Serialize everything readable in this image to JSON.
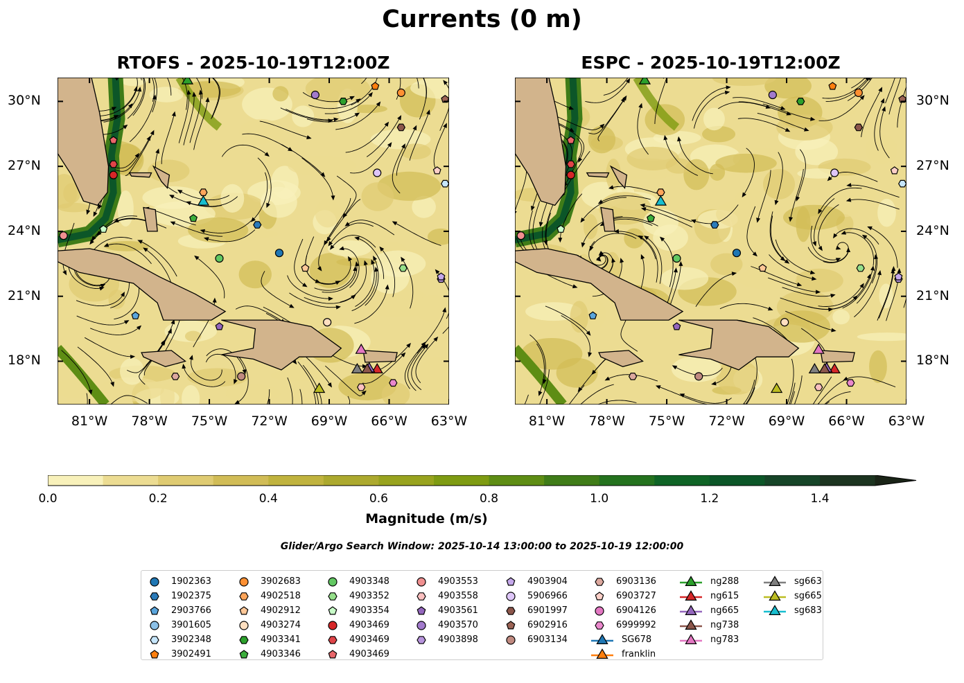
{
  "suptitle": "Currents (0 m)",
  "chart_data": {
    "type": "map",
    "panels": [
      {
        "title": "RTOFS - 2025-10-19T12:00Z"
      },
      {
        "title": "ESPC - 2025-10-19T12:00Z"
      }
    ],
    "lon_range": [
      -82.6,
      -63
    ],
    "lat_range": [
      16,
      31.1
    ],
    "lon_ticks": [
      {
        "v": -81,
        "label": "81°W"
      },
      {
        "v": -78,
        "label": "78°W"
      },
      {
        "v": -75,
        "label": "75°W"
      },
      {
        "v": -72,
        "label": "72°W"
      },
      {
        "v": -69,
        "label": "69°W"
      },
      {
        "v": -66,
        "label": "66°W"
      },
      {
        "v": -63,
        "label": "63°W"
      }
    ],
    "lat_ticks": [
      {
        "v": 30,
        "label": "30°N"
      },
      {
        "v": 27,
        "label": "27°N"
      },
      {
        "v": 24,
        "label": "24°N"
      },
      {
        "v": 21,
        "label": "21°N"
      },
      {
        "v": 18,
        "label": "18°N"
      }
    ],
    "colorbar": {
      "label": "Magnitude (m/s)",
      "levels": [
        0,
        0.1,
        0.2,
        0.3,
        0.4,
        0.5,
        0.6,
        0.7,
        0.8,
        0.9,
        1.0,
        1.1,
        1.2,
        1.3,
        1.4,
        1.5
      ],
      "colors": [
        "#f8f1ba",
        "#ecdc92",
        "#dfcb72",
        "#d1bc56",
        "#c0b33e",
        "#aca92e",
        "#98a31e",
        "#7e9b12",
        "#5e8d14",
        "#3f7c18",
        "#24721e",
        "#0f6426",
        "#0c5628",
        "#164528",
        "#1c3420"
      ],
      "extend_color": "#1a2417",
      "ticks": [
        {
          "v": 0,
          "label": "0.0"
        },
        {
          "v": 0.2,
          "label": "0.2"
        },
        {
          "v": 0.4,
          "label": "0.4"
        },
        {
          "v": 0.6,
          "label": "0.6"
        },
        {
          "v": 0.8,
          "label": "0.8"
        },
        {
          "v": 1.0,
          "label": "1.0"
        },
        {
          "v": 1.2,
          "label": "1.2"
        },
        {
          "v": 1.4,
          "label": "1.4"
        }
      ]
    },
    "search_window": "Glider/Argo Search Window: 2025-10-14 13:00:00 to 2025-10-19 12:00:00",
    "markers": [
      {
        "label": "1902363",
        "shape": "circle",
        "color": "#1f77b4",
        "lon": -71.5,
        "lat": 23.0
      },
      {
        "label": "1902375",
        "shape": "hex",
        "color": "#2b7bba",
        "lon": -72.6,
        "lat": 24.3
      },
      {
        "label": "2903766",
        "shape": "pent",
        "color": "#5aa5dc",
        "lon": -78.7,
        "lat": 20.1
      },
      {
        "label": "3901605",
        "shape": "circle",
        "color": "#8cc1e8",
        "lon": null,
        "lat": null
      },
      {
        "label": "3902348",
        "shape": "hex",
        "color": "#c6e6fb",
        "lon": -63.2,
        "lat": 26.2
      },
      {
        "label": "3902491",
        "shape": "pent",
        "color": "#ff7f0e",
        "lon": -66.7,
        "lat": 30.7
      },
      {
        "label": "3902683",
        "shape": "circle",
        "color": "#ff9032",
        "lon": -65.4,
        "lat": 30.4
      },
      {
        "label": "4902518",
        "shape": "hex",
        "color": "#ffa55a",
        "lon": -75.3,
        "lat": 25.8
      },
      {
        "label": "4902912",
        "shape": "pent",
        "color": "#ffc898",
        "lon": -70.2,
        "lat": 22.3
      },
      {
        "label": "4903274",
        "shape": "circle",
        "color": "#ffdfc0",
        "lon": -69.1,
        "lat": 19.8
      },
      {
        "label": "4903341",
        "shape": "hex",
        "color": "#2ca02c",
        "lon": -68.3,
        "lat": 30.0
      },
      {
        "label": "4903346",
        "shape": "pent",
        "color": "#3cad3c",
        "lon": -75.8,
        "lat": 24.6
      },
      {
        "label": "4903348",
        "shape": "circle",
        "color": "#62c862",
        "lon": -74.5,
        "lat": 22.75
      },
      {
        "label": "4903352",
        "shape": "hex",
        "color": "#95df8a",
        "lon": -65.3,
        "lat": 22.3
      },
      {
        "label": "4903354",
        "shape": "pent",
        "color": "#c8fcc8",
        "lon": -80.3,
        "lat": 24.1
      },
      {
        "label": "4903469",
        "shape": "circle",
        "color": "#d62728",
        "lon": -79.8,
        "lat": 26.6
      },
      {
        "label": "4903469",
        "shape": "hex",
        "color": "#df4448",
        "lon": -79.8,
        "lat": 27.1
      },
      {
        "label": "4903469",
        "shape": "pent",
        "color": "#e8666a",
        "lon": -79.8,
        "lat": 28.2
      },
      {
        "label": "4903553",
        "shape": "circle",
        "color": "#f09090",
        "lon": -82.3,
        "lat": 23.8
      },
      {
        "label": "4903558",
        "shape": "hex",
        "color": "#fcc0c0",
        "lon": -67.4,
        "lat": 16.8
      },
      {
        "label": "4903561",
        "shape": "pent",
        "color": "#9467bd",
        "lon": -74.5,
        "lat": 19.6
      },
      {
        "label": "4903570",
        "shape": "circle",
        "color": "#a27acc",
        "lon": -69.7,
        "lat": 30.3
      },
      {
        "label": "4903898",
        "shape": "hex",
        "color": "#b794dc",
        "lon": -63.4,
        "lat": 21.8
      },
      {
        "label": "4903904",
        "shape": "pent",
        "color": "#c5a8eb",
        "lon": -63.4,
        "lat": 21.9
      },
      {
        "label": "5906966",
        "shape": "circle",
        "color": "#dec6f8",
        "lon": -66.6,
        "lat": 26.7
      },
      {
        "label": "6901997",
        "shape": "hex",
        "color": "#8c564b",
        "lon": -65.4,
        "lat": 28.8
      },
      {
        "label": "6902916",
        "shape": "pent",
        "color": "#9c6456",
        "lon": -63.2,
        "lat": 30.1
      },
      {
        "label": "6903134",
        "shape": "circle",
        "color": "#c08a80",
        "lon": -73.4,
        "lat": 17.3
      },
      {
        "label": "6903136",
        "shape": "hex",
        "color": "#dca89e",
        "lon": -76.7,
        "lat": 17.3
      },
      {
        "label": "6903727",
        "shape": "pent",
        "color": "#fdd0c8",
        "lon": -63.6,
        "lat": 26.8
      },
      {
        "label": "6904126",
        "shape": "circle",
        "color": "#e377c2",
        "lon": null,
        "lat": null
      },
      {
        "label": "6999992",
        "shape": "hex",
        "color": "#ea88cc",
        "lon": -65.8,
        "lat": 17.0
      },
      {
        "label": "SG678",
        "shape": "tri",
        "color": "#1f77b4",
        "lon": null,
        "lat": null
      },
      {
        "label": "franklin",
        "shape": "tri",
        "color": "#ff7f0e",
        "lon": null,
        "lat": null
      },
      {
        "label": "ng288",
        "shape": "tri",
        "color": "#2ca02c",
        "lon": -76.1,
        "lat": 30.95
      },
      {
        "label": "ng615",
        "shape": "tri",
        "color": "#d62728",
        "lon": -66.6,
        "lat": 17.6
      },
      {
        "label": "ng665",
        "shape": "tri",
        "color": "#9467bd",
        "lon": -67.0,
        "lat": 17.65
      },
      {
        "label": "ng738",
        "shape": "tri",
        "color": "#8c564b",
        "lon": -67.1,
        "lat": 17.6
      },
      {
        "label": "ng783",
        "shape": "tri",
        "color": "#e377c2",
        "lon": -67.4,
        "lat": 18.5
      },
      {
        "label": "sg663",
        "shape": "tri",
        "color": "#7f7f7f",
        "lon": -67.6,
        "lat": 17.6
      },
      {
        "label": "sg665",
        "shape": "tri",
        "color": "#bcbd22",
        "lon": -69.5,
        "lat": 16.7
      },
      {
        "label": "sg683",
        "shape": "tri",
        "color": "#17becf",
        "lon": -75.3,
        "lat": 25.35
      }
    ]
  }
}
